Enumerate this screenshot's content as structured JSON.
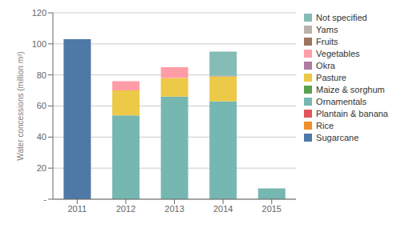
{
  "chart_data": {
    "type": "bar",
    "stacked": true,
    "categories": [
      "2011",
      "2012",
      "2013",
      "2014",
      "2015"
    ],
    "series": [
      {
        "name": "Sugarcane",
        "color": "#4e79a7",
        "values": [
          103.0,
          0.0,
          0.0,
          0.0,
          0.0
        ]
      },
      {
        "name": "Rice",
        "color": "#f28e2b",
        "values": [
          0.0,
          0.0,
          0.0,
          0.0,
          0.0
        ]
      },
      {
        "name": "Plantain & banana",
        "color": "#e15759",
        "values": [
          0.0,
          0.0,
          0.0,
          0.0,
          0.0
        ]
      },
      {
        "name": "Ornamentals",
        "color": "#76b7b2",
        "values": [
          0.0,
          54.0,
          66.0,
          63.0,
          7.0
        ]
      },
      {
        "name": "Maize & sorghum",
        "color": "#59a14f",
        "values": [
          0.0,
          0.0,
          0.0,
          0.0,
          0.0
        ]
      },
      {
        "name": "Pasture",
        "color": "#edc948",
        "values": [
          0.0,
          16.0,
          12.0,
          16.0,
          0.0
        ]
      },
      {
        "name": "Okra",
        "color": "#b07aa1",
        "values": [
          0.0,
          0.0,
          0.0,
          0.5,
          0.0
        ]
      },
      {
        "name": "Vegetables",
        "color": "#ff9da7",
        "values": [
          0.0,
          6.0,
          7.0,
          0.0,
          0.0
        ]
      },
      {
        "name": "Fruits",
        "color": "#9c755f",
        "values": [
          0.0,
          0.0,
          0.0,
          0.0,
          0.0
        ]
      },
      {
        "name": "Yams",
        "color": "#bab0ac",
        "values": [
          0.0,
          0.0,
          0.0,
          0.0,
          0.0
        ]
      },
      {
        "name": "Not specified",
        "color": "#86bcb6",
        "values": [
          0.0,
          0.0,
          0.0,
          15.5,
          0.0
        ]
      }
    ],
    "ylabel": "Water concessions (million m³)",
    "ylim": [
      0,
      120
    ],
    "yticks": [
      {
        "value": 0,
        "label": "-"
      },
      20,
      40,
      60,
      80,
      100,
      120
    ],
    "grid": true,
    "legend": "right"
  }
}
